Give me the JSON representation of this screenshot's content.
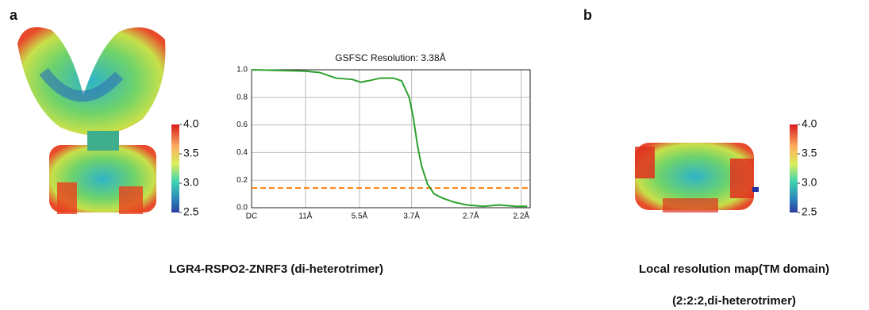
{
  "panel_labels": [
    "a",
    "b"
  ],
  "captions": [
    "LGR4-RSPO2-ZNRF3 (di-heterotrimer)",
    "Local resolution map(TM domain)",
    "(2:2:2,di-heterotrimer)"
  ],
  "colorbars": [
    {
      "range": [
        2.5,
        4.0
      ],
      "ticks": [
        {
          "value": 4.0,
          "label": "4.0"
        },
        3.5,
        {
          "value": 3.0,
          "label": "3.0"
        },
        2.5
      ]
    },
    {
      "range": [
        2.5,
        4.0
      ],
      "ticks": [
        {
          "value": 4.0,
          "label": "4.0"
        },
        3.5,
        {
          "value": 3.0,
          "label": "3.0"
        },
        2.5
      ]
    }
  ],
  "chart_data": {
    "type": "line",
    "title": "GSFSC Resolution: 3.38Å",
    "x": [
      0,
      0.091,
      0.115,
      0.142,
      0.17,
      0.184,
      0.197,
      0.218,
      0.239,
      0.253,
      0.266,
      0.273,
      0.28,
      0.287,
      0.297,
      0.308,
      0.322,
      0.342,
      0.363,
      0.391,
      0.418,
      0.446,
      0.465
    ],
    "series": [
      {
        "color": "#2ca02c",
        "values": [
          1.0,
          0.99,
          0.98,
          0.94,
          0.93,
          0.91,
          0.92,
          0.94,
          0.94,
          0.92,
          0.8,
          0.65,
          0.45,
          0.3,
          0.17,
          0.1,
          0.07,
          0.04,
          0.02,
          0.01,
          0.02,
          0.01,
          0.01
        ]
      }
    ],
    "threshold": 0.143,
    "threshold_color": "#ff7f0e",
    "xlim": [
      0,
      0.47
    ],
    "ylim": [
      0,
      1.0
    ],
    "xticks": [
      {
        "value": 0,
        "label": "DC"
      },
      {
        "value": 0.091,
        "label": "11Å"
      },
      {
        "value": 0.182,
        "label": "5.5Å"
      },
      {
        "value": 0.27,
        "label": "3.7Å"
      },
      {
        "value": 0.37,
        "label": "2.7Å"
      },
      {
        "value": 0.455,
        "label": "2.2Å"
      }
    ],
    "yticks": [
      {
        "value": 0,
        "label": "0.0"
      },
      0.2,
      0.4,
      0.6,
      0.8,
      {
        "value": 1.0,
        "label": "1.0"
      }
    ],
    "grid": true
  }
}
